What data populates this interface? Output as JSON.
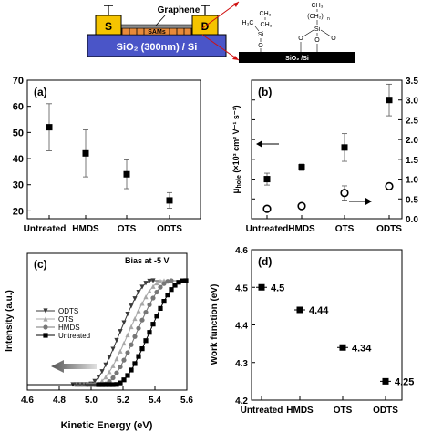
{
  "schematic": {
    "graphene": "Graphene",
    "source": "S",
    "drain": "D",
    "sam": "SAMs",
    "substrate": "SiO₂ (300nm) / Si",
    "chem": {
      "ch3_top": "CH₃",
      "ch3_left": "CH₃",
      "h3c": "H₃C",
      "si": "Si",
      "o": "O",
      "ch2": "(CH₂)",
      "n": "n",
      "base": "SiO₂ /Si"
    }
  },
  "panels": {
    "a": {
      "label": "(a)"
    },
    "b": {
      "label": "(b)"
    },
    "c": {
      "label": "(c)",
      "annotation": "Bias at -5 V"
    },
    "d": {
      "label": "(d)"
    }
  },
  "chart_data": [
    {
      "id": "a",
      "type": "scatter",
      "categories": [
        "Untreated",
        "HMDS",
        "OTS",
        "ODTS"
      ],
      "series": [
        {
          "values": [
            52,
            42,
            34,
            24
          ],
          "errors": [
            9,
            9,
            5.5,
            3
          ],
          "marker": "filled-square"
        }
      ],
      "ylim": [
        17,
        70
      ],
      "yticks": [
        20,
        30,
        40,
        50,
        60,
        70
      ]
    },
    {
      "id": "b",
      "type": "scatter",
      "categories": [
        "Untreated",
        "HMDS",
        "OTS",
        "ODTS"
      ],
      "ylabel_main": "μ",
      "ylabel_sub": "hole",
      "ylabel_rest": " (×10³ cm² V⁻¹ s⁻¹)",
      "ylim": [
        0,
        3.5
      ],
      "yticks": [
        0.0,
        0.5,
        1.0,
        1.5,
        2.0,
        2.5,
        3.0,
        3.5
      ],
      "series": [
        {
          "axis": "left",
          "marker": "filled-square",
          "values": [
            1.0,
            1.3,
            1.8,
            3.0
          ],
          "errors": [
            0.15,
            0.08,
            0.35,
            0.4
          ]
        },
        {
          "axis": "right",
          "marker": "open-circle",
          "values": [
            0.25,
            0.32,
            0.65,
            0.82
          ],
          "errors": [
            0.05,
            0.05,
            0.18,
            0.05
          ]
        }
      ]
    },
    {
      "id": "c",
      "type": "line",
      "xlabel": "Kinetic Energy (eV)",
      "ylabel": "Intensity (a.u.)",
      "xlim": [
        4.6,
        5.6
      ],
      "xticks": [
        4.6,
        4.8,
        5.0,
        5.2,
        5.4,
        5.6
      ],
      "legend": "top-left",
      "series": [
        {
          "name": "ODTS",
          "onset": 4.98,
          "plateau": 5.38,
          "color": "#3a3a3a",
          "marker": "triangle-down"
        },
        {
          "name": "OTS",
          "onset": 5.02,
          "plateau": 5.45,
          "color": "#a8a8a8",
          "marker": "triangle-up"
        },
        {
          "name": "HMDS",
          "onset": 5.07,
          "plateau": 5.5,
          "color": "#777777",
          "marker": "circle"
        },
        {
          "name": "Untreated",
          "onset": 5.15,
          "plateau": 5.58,
          "color": "#000000",
          "marker": "square"
        }
      ]
    },
    {
      "id": "d",
      "type": "scatter",
      "ylabel": "Work function (eV)",
      "categories": [
        "Untreated",
        "HMDS",
        "OTS",
        "ODTS"
      ],
      "ylim": [
        4.2,
        4.6
      ],
      "yticks": [
        4.2,
        4.3,
        4.4,
        4.5,
        4.6
      ],
      "series": [
        {
          "values": [
            4.5,
            4.44,
            4.34,
            4.25
          ],
          "labels": [
            "4.5",
            "4.44",
            "4.34",
            "4.25"
          ],
          "marker": "filled-square"
        }
      ]
    }
  ]
}
